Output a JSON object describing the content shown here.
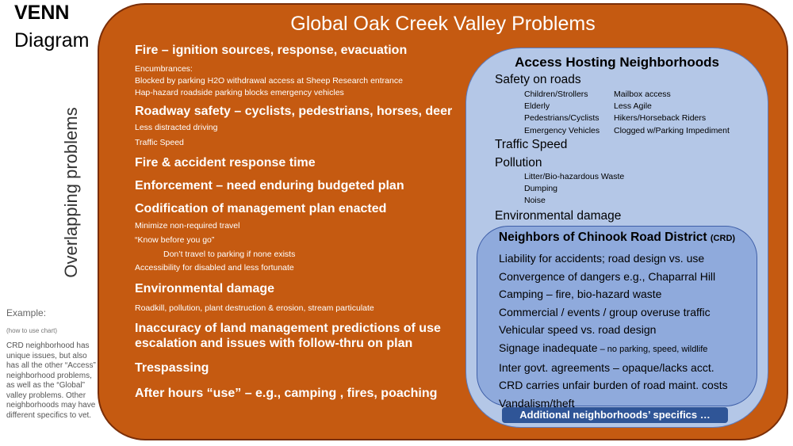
{
  "header": {
    "venn": "VENN",
    "diagram": "Diagram"
  },
  "side_label": "Overlapping problems",
  "example": {
    "heading": "Example:",
    "sub": "(how to use chart)",
    "text": "CRD neighborhood has unique issues, but also has all the other “Access” neighborhood problems, as well as the “Global” valley problems.  Other neighborhoods may have different specifics to vet."
  },
  "global": {
    "title": "Global Oak Creek Valley Problems",
    "fire_head": "Fire – ignition sources, response, evacuation",
    "fire_sub1": "Encumbrances:",
    "fire_sub2": "Blocked by parking H2O withdrawal access at Sheep Research entrance",
    "fire_sub3": "Hap-hazard roadside parking blocks emergency vehicles",
    "road_head": "Roadway safety – cyclists, pedestrians, horses, deer",
    "road_sub1": "Less distracted driving",
    "road_sub2": "Traffic Speed",
    "response_head": "Fire & accident response time",
    "enforce_head": "Enforcement – need enduring budgeted plan",
    "codify_head": "Codification of management plan enacted",
    "codify_sub1": "Minimize non-required travel",
    "codify_sub2": "“Know before you go”",
    "codify_sub3": "Don’t travel to parking if none exists",
    "codify_sub4": "Accessibility for disabled and less fortunate",
    "env_head": "Environmental damage",
    "env_sub1": "Roadkill, pollution, plant destruction & erosion, stream particulate",
    "inacc_head": "Inaccuracy of land management predictions of use escalation and issues with follow-thru on plan",
    "tres_head": "Trespassing",
    "after_head": "After hours “use” – e.g., camping , fires, poaching"
  },
  "access": {
    "title": "Access Hosting Neighborhoods",
    "safety": "Safety on roads",
    "safety_left": [
      "Children/Strollers",
      "Elderly",
      "Pedestrians/Cyclists",
      "Emergency Vehicles"
    ],
    "safety_right": [
      "Mailbox access",
      "Less Agile",
      "Hikers/Horseback Riders",
      "Clogged w/Parking Impediment"
    ],
    "traffic": "Traffic Speed",
    "pollution": "Pollution",
    "pollution_items": [
      "Litter/Bio-hazardous Waste",
      "Dumping",
      "Noise"
    ],
    "env": "Environmental damage"
  },
  "crd": {
    "title": "Neighbors of Chinook Road District",
    "title_abbr": "(CRD)",
    "items": [
      "Liability for accidents; road design vs. use",
      "Convergence of dangers e.g., Chaparral Hill",
      "Camping – fire, bio-hazard waste",
      "Commercial / events / group overuse traffic",
      "Vehicular speed vs. road design",
      "Signage inadequate",
      "Inter govt. agreements – opaque/lacks acct.",
      "CRD carries unfair burden of road maint. costs",
      "Vandalism/theft"
    ],
    "signage_note": " – no parking, speed, wildlife"
  },
  "additional": "Additional neighborhoods’ specifics …",
  "colors": {
    "global": "#c55a11",
    "access": "#b4c7e7",
    "crd": "#8faadc",
    "button": "#2f5597"
  }
}
